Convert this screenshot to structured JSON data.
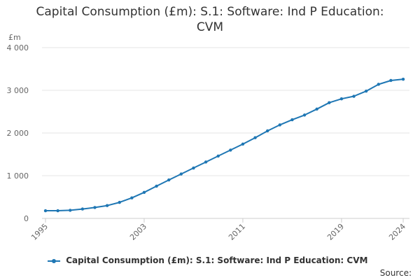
{
  "chart_data": {
    "type": "line",
    "title_lines": [
      "Capital Consumption (£m): S.1: Software: Ind P Education:",
      "CVM"
    ],
    "ylabel": "£m",
    "ylim": [
      0,
      4000
    ],
    "yticks": [
      0,
      1000,
      2000,
      3000,
      4000
    ],
    "ytick_labels": [
      "0",
      "1 000",
      "2 000",
      "3 000",
      "4 000"
    ],
    "xlim": [
      1995,
      2024
    ],
    "xtick_labels": [
      "1995",
      "2003",
      "2011",
      "2019",
      "2024"
    ],
    "series": [
      {
        "name": "Capital Consumption (£m): S.1: Software: Ind P Education: CVM",
        "color": "#1f77b4",
        "x": [
          1995,
          1996,
          1997,
          1998,
          1999,
          2000,
          2001,
          2002,
          2003,
          2004,
          2005,
          2006,
          2007,
          2008,
          2009,
          2010,
          2011,
          2012,
          2013,
          2014,
          2015,
          2016,
          2017,
          2018,
          2019,
          2020,
          2021,
          2022,
          2023,
          2024
        ],
        "values": [
          180,
          180,
          190,
          220,
          255,
          300,
          375,
          480,
          610,
          755,
          900,
          1040,
          1180,
          1320,
          1460,
          1600,
          1740,
          1890,
          2050,
          2190,
          2310,
          2420,
          2560,
          2710,
          2800,
          2860,
          2980,
          3140,
          3230,
          3260
        ]
      }
    ]
  },
  "legend": {
    "label": "Capital Consumption (£m): S.1: Software: Ind P Education: CVM"
  },
  "source_label": "Source:"
}
